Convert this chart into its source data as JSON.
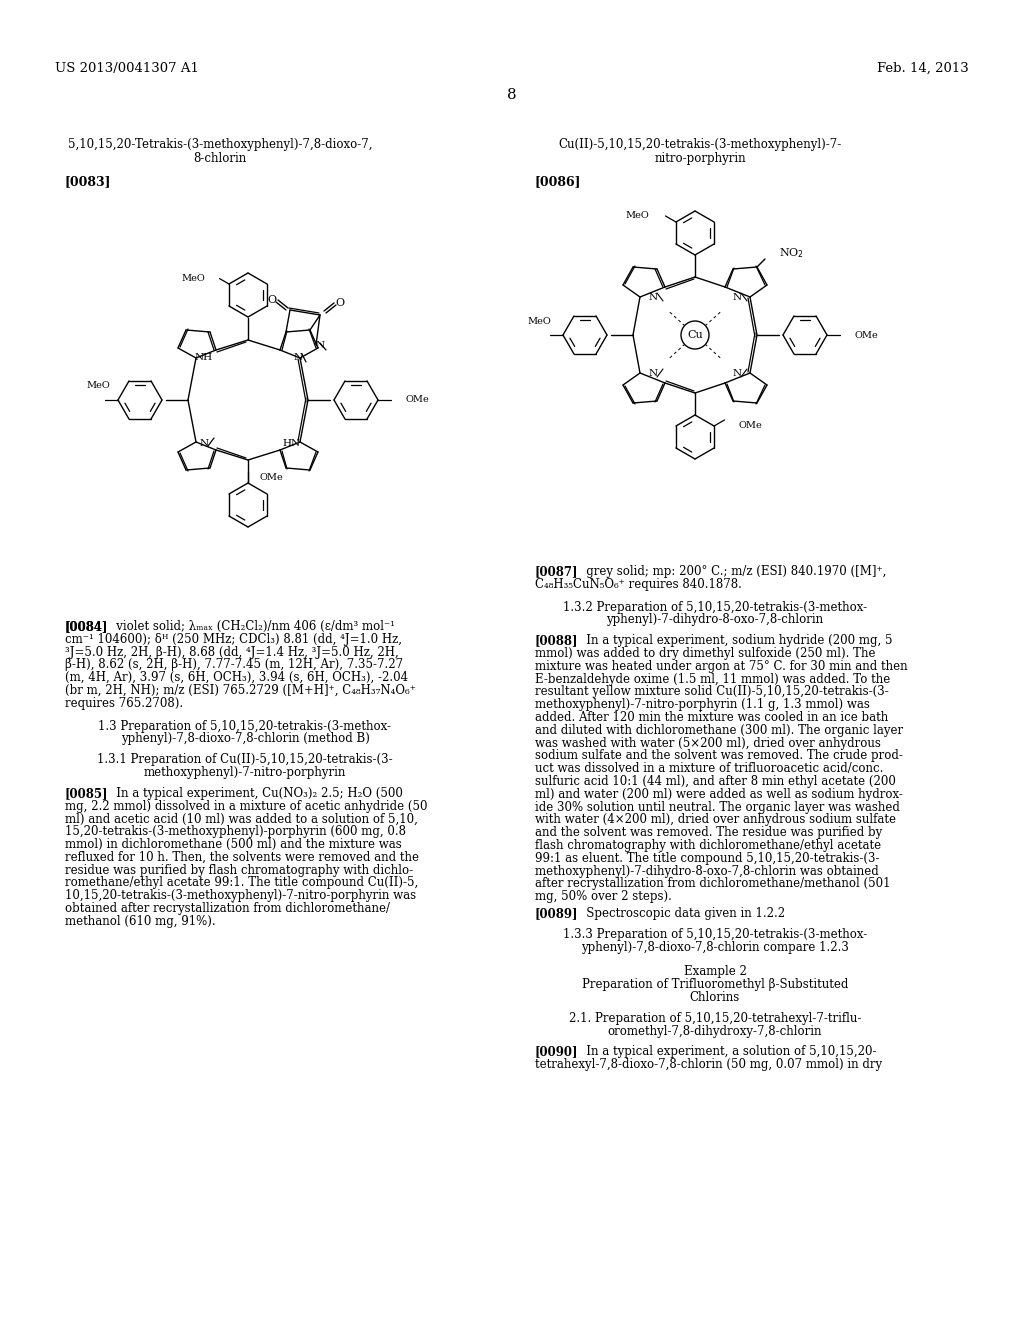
{
  "background_color": "#ffffff",
  "header_left": "US 2013/0041307 A1",
  "header_right": "Feb. 14, 2013",
  "page_number": "8",
  "compound1_title_line1": "5,10,15,20-Tetrakis-(3-methoxyphenyl)-7,8-dioxo-7,",
  "compound1_title_line2": "8-chlorin",
  "compound1_ref": "[0083]",
  "compound2_title_line1": "Cu(II)-5,10,15,20-tetrakis-(3-methoxyphenyl)-7-",
  "compound2_title_line2": "nitro-porphyrin",
  "compound2_ref": "[0086]"
}
